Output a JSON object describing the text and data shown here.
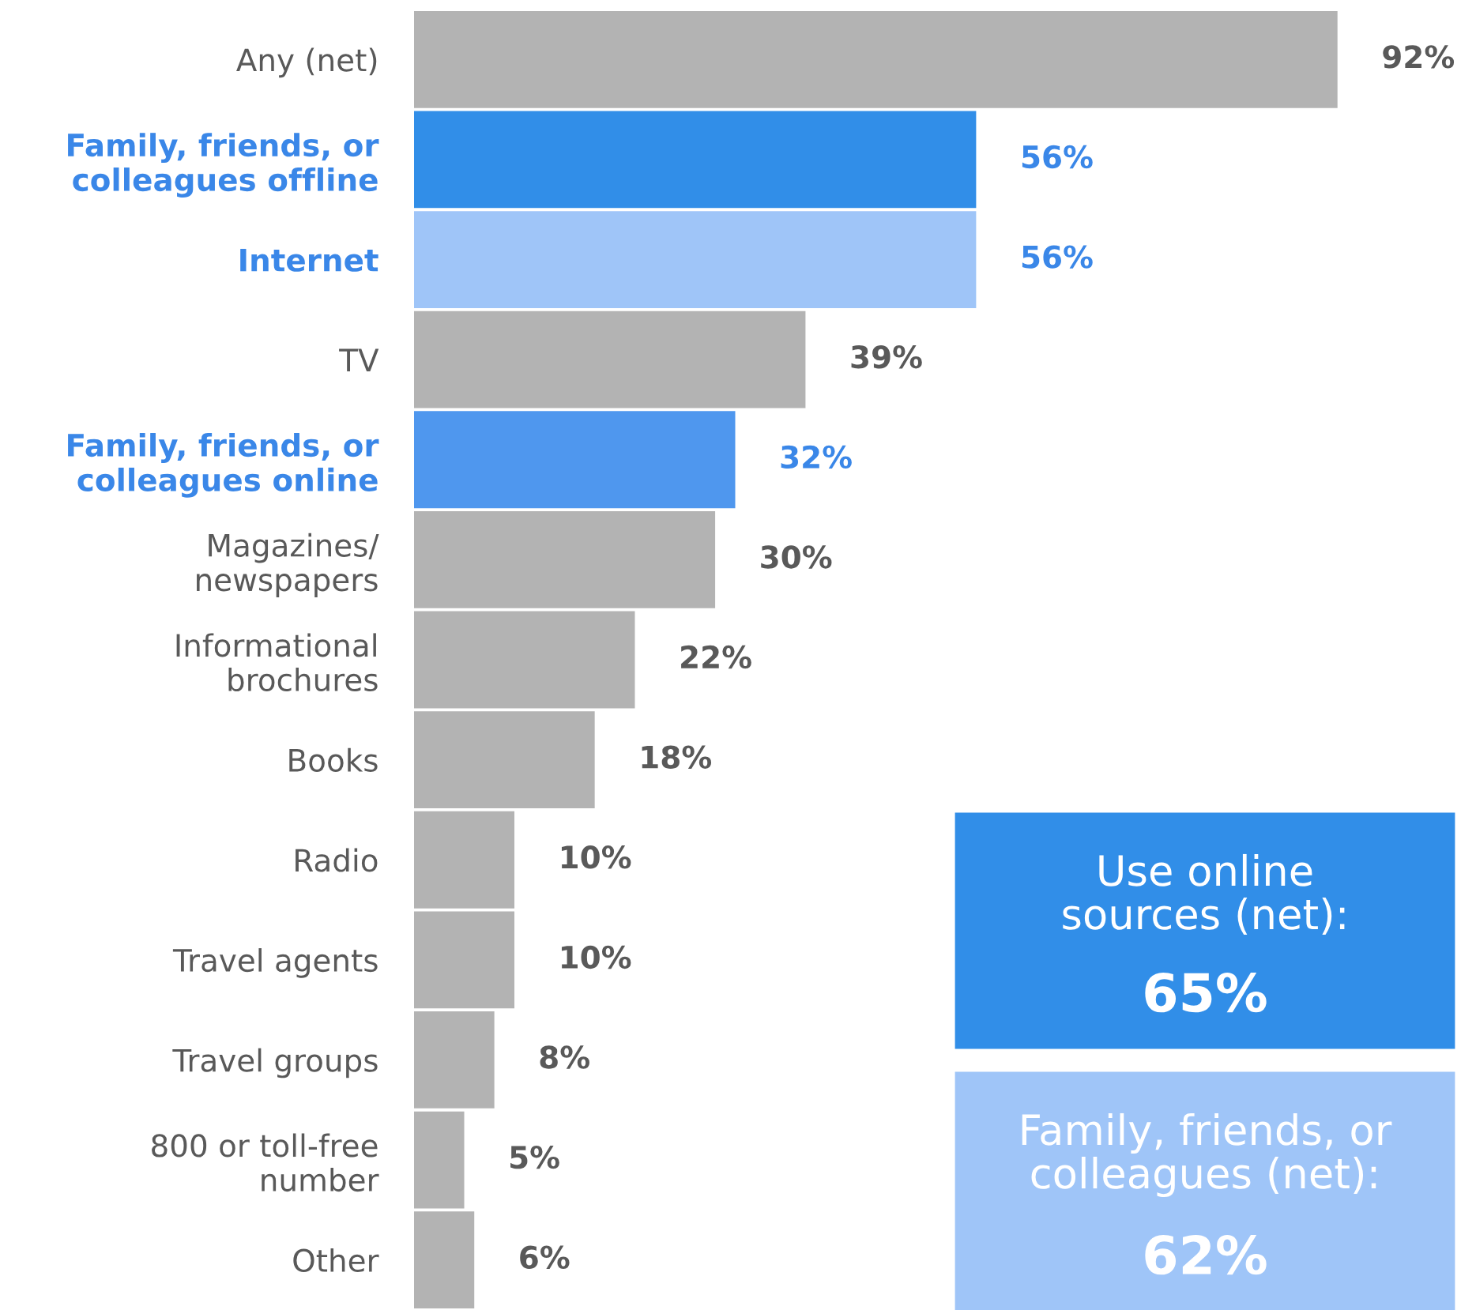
{
  "chart_data": {
    "type": "bar",
    "orientation": "horizontal",
    "categories": [
      "Any (net)",
      "Family, friends, or\ncolleagues offline",
      "Internet",
      "TV",
      "Family, friends, or\ncolleagues online",
      "Magazines/\nnewspapers",
      "Informational\nbrochures",
      "Books",
      "Radio",
      "Travel agents",
      "Travel groups",
      "800 or toll-free\nnumber",
      "Other"
    ],
    "values": [
      92,
      56,
      56,
      39,
      32,
      30,
      22,
      18,
      10,
      10,
      8,
      5,
      6
    ],
    "colors": [
      "#b3b3b3",
      "#318ee8",
      "#9fc5f8",
      "#b3b3b3",
      "#4f97ee",
      "#b3b3b3",
      "#b3b3b3",
      "#b3b3b3",
      "#b3b3b3",
      "#b3b3b3",
      "#b3b3b3",
      "#b3b3b3",
      "#b3b3b3"
    ],
    "value_labels": [
      "92%",
      "56%",
      "56%",
      "39%",
      "32%",
      "30%",
      "22%",
      "18%",
      "10%",
      "10%",
      "8%",
      "5%",
      "6%"
    ],
    "annotations": [
      "Use online\nsources (net):\n65%",
      "Family, friends, or\ncolleagues (net):\n62%"
    ]
  }
}
